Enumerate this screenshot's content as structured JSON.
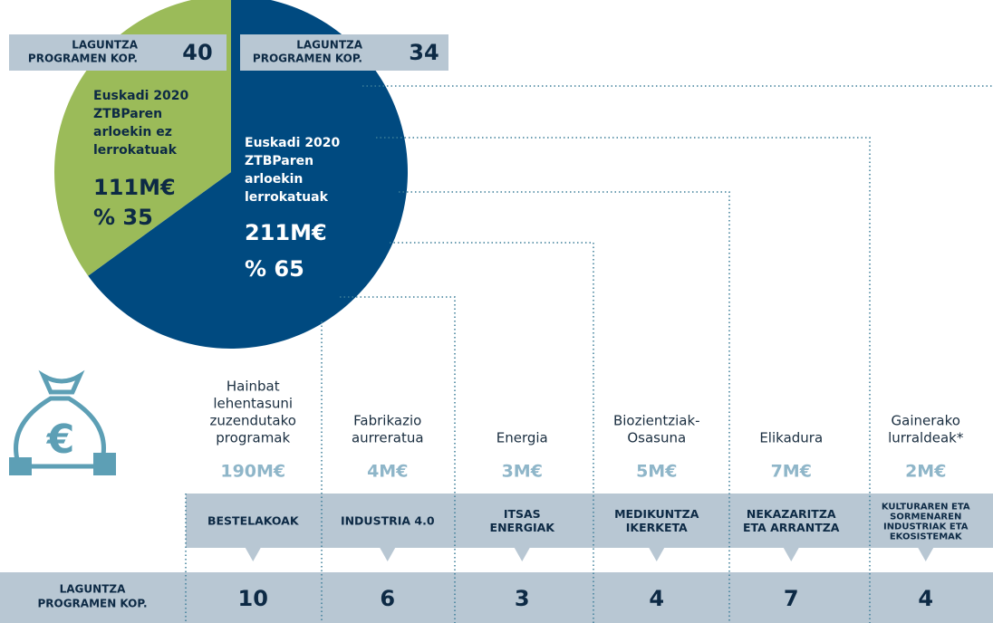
{
  "pie": {
    "type": "pie",
    "slices": [
      {
        "name": [
          "Euskadi 2020",
          "ZTBParen",
          "arloekin",
          "lerrokatuak"
        ],
        "amount": "211M€",
        "value": 65,
        "value_label": "% 65",
        "programs_label": [
          "LAGUNTZA",
          "PROGRAMEN KOP."
        ],
        "programs": 34,
        "color": "#004a80"
      },
      {
        "name": [
          "Euskadi 2020",
          "ZTBParen",
          "arloekin ez",
          "lerrokatuak"
        ],
        "amount": "111M€",
        "value": 35,
        "value_label": "% 35",
        "programs_label": [
          "LAGUNTZA",
          "PROGRAMEN KOP."
        ],
        "programs": 40,
        "color": "#9bbb59"
      }
    ]
  },
  "areas": [
    {
      "name": [
        "Hainbat",
        "lehentasuni",
        "zuzendutako",
        "programak"
      ],
      "amount": "190M€",
      "category": [
        "BESTELAKOAK"
      ],
      "programs": 10
    },
    {
      "name": [
        "Fabrikazio",
        "aurreratua"
      ],
      "amount": "4M€",
      "category": [
        "INDUSTRIA 4.0"
      ],
      "programs": 6
    },
    {
      "name": [
        "Energia"
      ],
      "amount": "3M€",
      "category": [
        "ITSAS",
        "ENERGIAK"
      ],
      "programs": 3
    },
    {
      "name": [
        "Biozientziak-",
        "Osasuna"
      ],
      "amount": "5M€",
      "category": [
        "MEDIKUNTZA",
        "IKERKETA"
      ],
      "programs": 4
    },
    {
      "name": [
        "Elikadura"
      ],
      "amount": "7M€",
      "category": [
        "NEKAZARITZA",
        "ETA ARRANTZA"
      ],
      "programs": 7
    },
    {
      "name": [
        "Gainerako",
        "lurraldeak*"
      ],
      "amount": "2M€",
      "category": [
        "KULTURAREN ETA",
        "SORMENAREN",
        "INDUSTRIAK ETA",
        "EKOSISTEMAK"
      ],
      "programs": 4
    }
  ],
  "row_label": [
    "LAGUNTZA",
    "PROGRAMEN KOP."
  ]
}
